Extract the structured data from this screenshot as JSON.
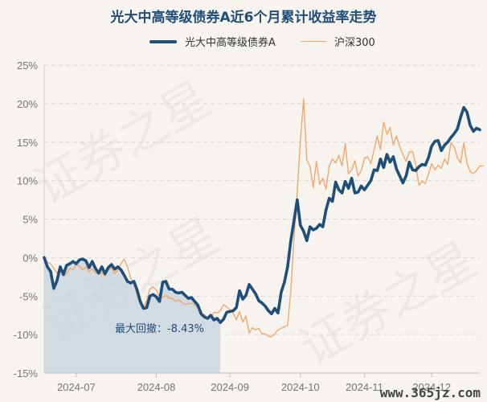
{
  "title": "光大中高等级债券A近6个月累计收益率走势",
  "watermark": "证券之星",
  "brand_watermark": "www.365jz.com",
  "colors": {
    "fund": "#1f4e79",
    "index": "#f2a86b",
    "drawdown_fill": "#c5d2de",
    "grid": "#d6d6d6",
    "background": "#f7f3ee"
  },
  "chart_data": {
    "type": "line",
    "title": "光大中高等级债券A近6个月累计收益率走势",
    "y_unit": "%",
    "ylim": [
      -15,
      25
    ],
    "yticks": [
      25,
      20,
      15,
      10,
      5,
      0,
      -5,
      -10,
      -15
    ],
    "ytick_labels": [
      "25%",
      "20%",
      "15%",
      "10%",
      "5%",
      "0%",
      "-5%",
      "-10%",
      "-15%"
    ],
    "x_ticks": [
      {
        "label": "2024-07",
        "index": 10
      },
      {
        "label": "2024-08",
        "index": 35
      },
      {
        "label": "2024-09",
        "index": 58
      },
      {
        "label": "2024-10",
        "index": 80
      },
      {
        "label": "2024-11",
        "index": 100
      },
      {
        "label": "2024-12",
        "index": 121
      }
    ],
    "n_points": 137,
    "grid": "horizontal dashed",
    "legend_position": "top",
    "series": [
      {
        "name": "光大中高等级债券A",
        "color": "#1f4e79",
        "values": [
          0,
          -1.2,
          -1.8,
          -4,
          -3,
          -1.2,
          -2.2,
          -1,
          -0.8,
          -0.5,
          -0.8,
          -0.3,
          -0.2,
          -0.4,
          -1.3,
          -0.5,
          -1.4,
          -2,
          -1.2,
          -2.1,
          -1.3,
          -0.9,
          -1.5,
          -1.2,
          -1.6,
          -2.3,
          -3.1,
          -3.3,
          -3.1,
          -4.2,
          -5.7,
          -6.6,
          -6.5,
          -5,
          -4.8,
          -5.1,
          -5.7,
          -3.2,
          -3.1,
          -4.1,
          -4.1,
          -4.5,
          -4.6,
          -4.5,
          -4.9,
          -5.3,
          -5.2,
          -5.7,
          -6.2,
          -7.3,
          -7.7,
          -7.9,
          -7.5,
          -8.1,
          -7.9,
          -8.43,
          -8,
          -7.1,
          -7,
          -6.9,
          -6.5,
          -4.3,
          -5.4,
          -4.9,
          -3.5,
          -4.1,
          -4.7,
          -5.6,
          -5.9,
          -6.3,
          -6.9,
          -7.3,
          -6.6,
          -7.2,
          -4.5,
          -3.2,
          -1.2,
          2.2,
          4.8,
          7.5,
          4.2,
          3.4,
          2.2,
          4,
          3.6,
          3.8,
          4.3,
          4,
          6.2,
          7.7,
          7.3,
          9.8,
          8.8,
          8.4,
          9.9,
          9,
          10.3,
          8.4,
          8.5,
          9.3,
          8.8,
          9.4,
          10,
          11.4,
          11.3,
          12.8,
          11.7,
          13.4,
          12.4,
          13.1,
          11.5,
          10.6,
          9.7,
          10.6,
          12.4,
          11.4,
          11.3,
          11.8,
          12.1,
          12,
          13,
          14.5,
          15.1,
          15.2,
          13.9,
          14.6,
          15,
          15.6,
          16.1,
          16.7,
          18.2,
          19.5,
          18.9,
          17.2,
          16.4,
          16.8,
          16.6
        ]
      },
      {
        "name": "沪深300",
        "color": "#f2a86b",
        "values": [
          0,
          -0.6,
          -0.8,
          -1.4,
          -2,
          -1.4,
          -2.4,
          -2.1,
          -1.4,
          -1.6,
          -0.9,
          -1.1,
          -1.6,
          -1.2,
          -1.8,
          -1.5,
          -2,
          -2.2,
          -1.9,
          -2.4,
          -1.6,
          -1.3,
          -2.1,
          -1.6,
          -0.8,
          -0.2,
          -1.2,
          -2.7,
          -3.3,
          -4.8,
          -6.1,
          -6.5,
          -5.6,
          -4.1,
          -3.8,
          -4.2,
          -5.1,
          -5.2,
          -4.9,
          -5.3,
          -5.3,
          -5.7,
          -5.5,
          -5.8,
          -6.1,
          -6,
          -5.9,
          -6.2,
          -6.6,
          -7.5,
          -7.4,
          -7.9,
          -7.8,
          -7.1,
          -7.2,
          -6.9,
          -6.1,
          -6.4,
          -6.8,
          -7.2,
          -8.1,
          -7,
          -8.4,
          -7.6,
          -9.8,
          -9.1,
          -9.4,
          -9.2,
          -9.9,
          -9.9,
          -10.2,
          -10.3,
          -9.9,
          -9.4,
          -9.2,
          -9,
          -8.8,
          -4.4,
          2.6,
          8.4,
          15.2,
          20.6,
          12.7,
          11.8,
          9.1,
          12.5,
          9.5,
          10.3,
          8.9,
          11.9,
          12.8,
          12.3,
          13.3,
          11.9,
          14.8,
          10.9,
          11.4,
          12.6,
          10.6,
          11.3,
          12.9,
          13.1,
          12.2,
          14,
          15.8,
          14,
          17.6,
          16,
          16.9,
          14.6,
          15.8,
          14.4,
          13.4,
          12.5,
          13.7,
          13.8,
          12.1,
          9.4,
          9.9,
          9.6,
          10.9,
          12.2,
          11.4,
          12,
          11.6,
          12.8,
          12.1,
          14.9,
          14.4,
          13,
          12.3,
          14.9,
          12.3,
          11.2,
          10.9,
          11.3,
          11.9,
          11.9
        ]
      }
    ],
    "annotation": {
      "text": "最大回撤：-8.43%",
      "value": -8.43,
      "start_index": 0,
      "end_index": 55
    }
  }
}
